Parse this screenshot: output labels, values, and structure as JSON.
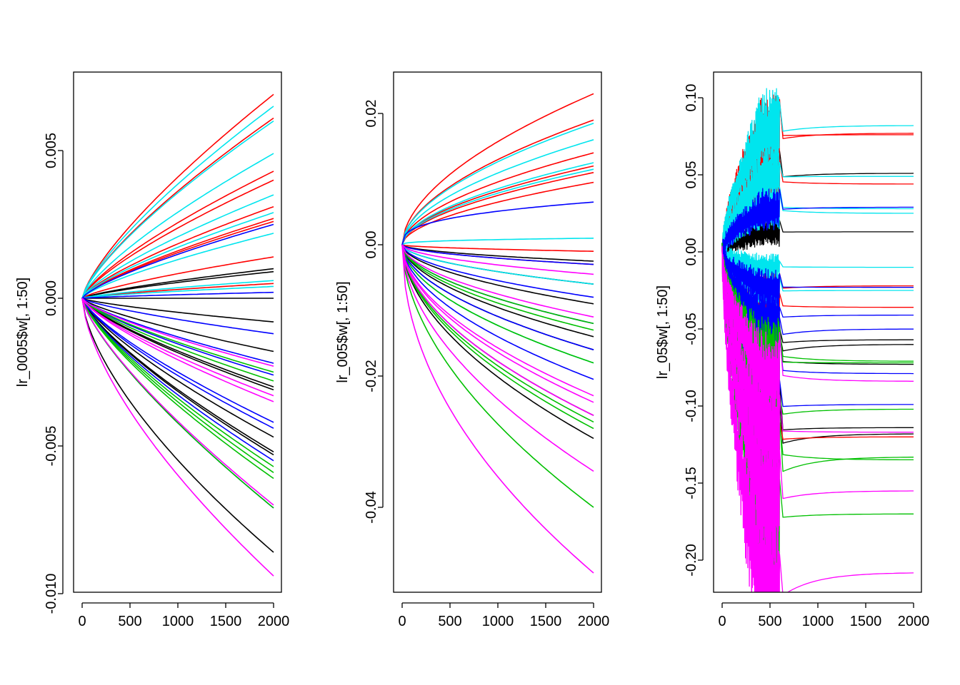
{
  "chart_data": [
    {
      "type": "line",
      "ylabel": "lr_0005$w[, 1:50]",
      "xlabel": "",
      "xlim": [
        0,
        2000
      ],
      "ylim": [
        -0.01,
        0.0075
      ],
      "x_ticks": [
        "0",
        "500",
        "1000",
        "1500",
        "2000"
      ],
      "y_ticks": [
        -0.01,
        -0.005,
        0.0,
        0.005
      ],
      "y_tick_labels": [
        "-0.010",
        "-0.005",
        "0.000",
        "0.005"
      ],
      "grid": false,
      "legend": "none",
      "curve_shape": "smooth",
      "series_endpoints_at_x2000": {
        "#000000": [
          0.001,
          0.0009,
          0.0,
          -0.0008,
          -0.0018,
          -0.003,
          -0.0031,
          -0.0047,
          -0.0052,
          -0.0053,
          -0.0086
        ],
        "#ff0000": [
          0.0069,
          0.0061,
          0.0043,
          0.004,
          0.0031,
          0.0027,
          0.0026,
          0.0014,
          0.0005
        ],
        "#00e5ee": [
          0.0065,
          0.006,
          0.0049,
          0.0035,
          0.0029,
          0.0022,
          0.0006,
          0.0004
        ],
        "#0000ff": [
          0.0025,
          0.0002,
          -0.0012,
          -0.0022,
          -0.0026,
          -0.0042,
          -0.0044,
          -0.0055,
          -0.0071
        ],
        "#00c000": [
          -0.0025,
          -0.0028,
          -0.0057,
          -0.0059,
          -0.0061,
          -0.0071
        ],
        "#ff00ff": [
          -0.0023,
          -0.0033,
          -0.0035,
          -0.007,
          -0.0094
        ]
      }
    },
    {
      "type": "line",
      "ylabel": "lr_005$w[, 1:50]",
      "xlabel": "",
      "xlim": [
        0,
        2000
      ],
      "ylim": [
        -0.053,
        0.026
      ],
      "x_ticks": [
        "0",
        "500",
        "1000",
        "1500",
        "2000"
      ],
      "y_ticks": [
        -0.04,
        -0.02,
        0.0,
        0.02
      ],
      "y_tick_labels": [
        "-0.04",
        "-0.02",
        "0.00",
        "0.02"
      ],
      "grid": false,
      "legend": "none",
      "curve_shape": "smooth",
      "series_endpoints_at_x2000": {
        "#000000": [
          -0.0025,
          -0.006,
          -0.009,
          -0.014,
          -0.016,
          -0.026,
          -0.0295
        ],
        "#ff0000": [
          0.023,
          0.019,
          0.014,
          0.012,
          0.011,
          0.0095,
          -0.001,
          -0.003
        ],
        "#00e5ee": [
          0.0185,
          0.016,
          0.0125,
          0.0115,
          0.001,
          -0.006,
          -0.018
        ],
        "#0000ff": [
          0.0065,
          -0.003,
          -0.008,
          -0.012,
          -0.016,
          -0.0205
        ],
        "#00c000": [
          -0.012,
          -0.013,
          -0.018,
          -0.027,
          -0.028,
          -0.04
        ],
        "#ff00ff": [
          -0.0045,
          -0.011,
          -0.023,
          -0.024,
          -0.026,
          -0.0345,
          -0.05
        ]
      }
    },
    {
      "type": "line",
      "ylabel": "lr_05$w[, 1:50]",
      "xlabel": "",
      "xlim": [
        0,
        2000
      ],
      "ylim": [
        -0.218,
        0.112
      ],
      "x_ticks": [
        "0",
        "500",
        "1000",
        "1500",
        "2000"
      ],
      "y_ticks": [
        -0.2,
        -0.15,
        -0.1,
        -0.05,
        0.0,
        0.05,
        0.1
      ],
      "y_tick_labels": [
        "-0.20",
        "-0.15",
        "-0.10",
        "-0.05",
        "0.00",
        "0.05",
        "0.10"
      ],
      "grid": false,
      "legend": "none",
      "curve_shape": "oscillating up to x≈600, then settling",
      "series_endpoints_at_x2000": {
        "#000000": [
          0.051,
          0.013,
          -0.057,
          -0.06,
          -0.073,
          -0.114,
          -0.118
        ],
        "#ff0000": [
          0.077,
          0.076,
          0.044,
          -0.022,
          -0.036,
          -0.12
        ],
        "#00e5ee": [
          0.082,
          0.049,
          0.028,
          0.025,
          -0.01,
          -0.025
        ],
        "#0000ff": [
          0.029,
          -0.023,
          -0.041,
          -0.05,
          -0.079,
          -0.099
        ],
        "#00c000": [
          -0.071,
          -0.072,
          -0.102,
          -0.133,
          -0.135,
          -0.17
        ],
        "#ff00ff": [
          -0.084,
          -0.117,
          -0.155,
          -0.208
        ]
      }
    }
  ]
}
